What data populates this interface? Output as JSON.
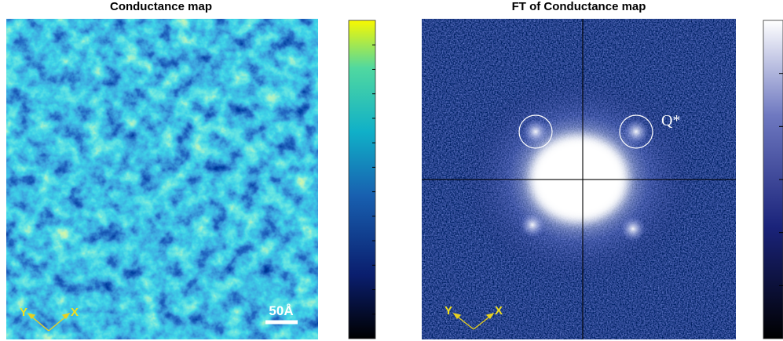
{
  "panels": [
    {
      "title": "Conductance map",
      "scale_bar": "50Å",
      "axes": {
        "y": "Y",
        "x": "X"
      }
    },
    {
      "title": "FT of Conductance map",
      "peak_label": "Q*",
      "axes": {
        "y": "Y",
        "x": "X"
      }
    }
  ]
}
